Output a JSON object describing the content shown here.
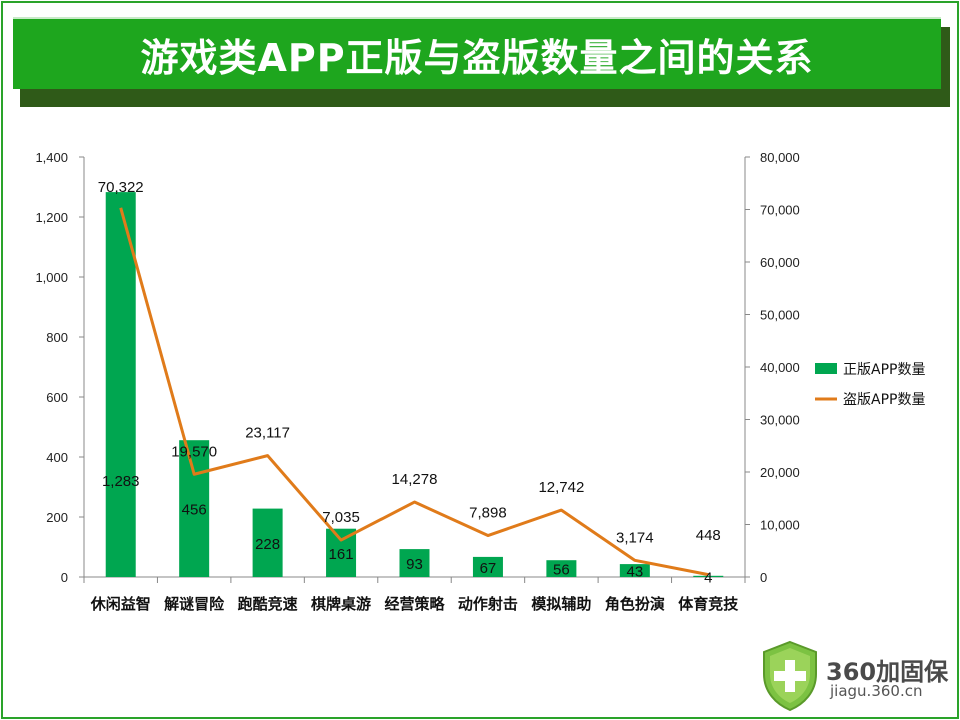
{
  "title": "游戏类APP正版与盗版数量之间的关系",
  "colors": {
    "bar": "#00a650",
    "line": "#e07b1a",
    "title_bg": "#1ea61e"
  },
  "logo": {
    "name": "360加固保",
    "url": "jiagu.360.cn",
    "icon": "shield-plus-icon"
  },
  "chart_data": {
    "type": "bar",
    "title": "游戏类APP正版与盗版数量之间的关系",
    "categories": [
      "休闲益智",
      "解谜冒险",
      "跑酷竞速",
      "棋牌桌游",
      "经营策略",
      "动作射击",
      "模拟辅助",
      "角色扮演",
      "体育竞技"
    ],
    "series": [
      {
        "name": "正版APP数量",
        "type": "bar",
        "axis": "left",
        "values": [
          1283,
          456,
          228,
          161,
          93,
          67,
          56,
          43,
          4
        ],
        "labels": [
          "1,283",
          "456",
          "228",
          "161",
          "93",
          "67",
          "56",
          "43",
          "4"
        ]
      },
      {
        "name": "盗版APP数量",
        "type": "line",
        "axis": "right",
        "values": [
          70322,
          19570,
          23117,
          7035,
          14278,
          7898,
          12742,
          3174,
          448
        ],
        "labels": [
          "70,322",
          "19,570",
          "23,117",
          "7,035",
          "14,278",
          "7,898",
          "12,742",
          "3,174",
          "448"
        ]
      }
    ],
    "y_left": {
      "min": 0,
      "max": 1400,
      "ticks": [
        "0",
        "200",
        "400",
        "600",
        "800",
        "1,000",
        "1,200",
        "1,400"
      ]
    },
    "y_right": {
      "min": 0,
      "max": 80000,
      "ticks": [
        "0",
        "10,000",
        "20,000",
        "30,000",
        "40,000",
        "50,000",
        "60,000",
        "70,000",
        "80,000"
      ]
    },
    "legend": {
      "placement": "right",
      "entries": [
        "正版APP数量",
        "盗版APP数量"
      ]
    },
    "grid": false
  }
}
